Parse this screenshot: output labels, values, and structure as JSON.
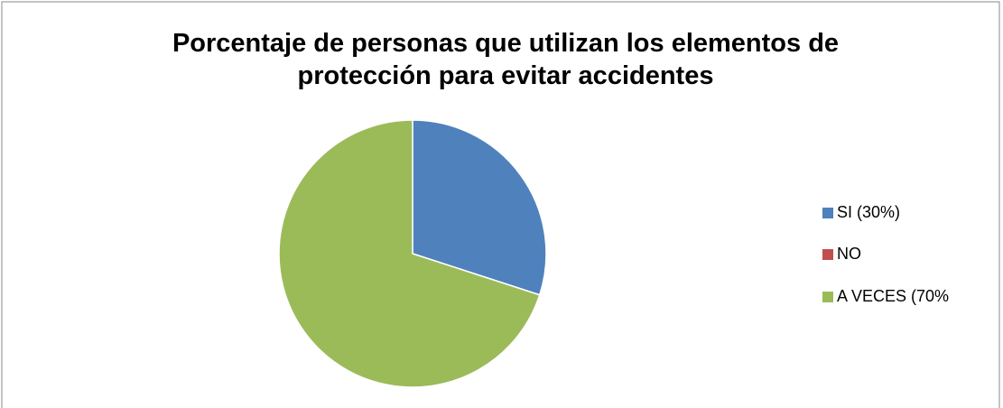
{
  "chart_data": {
    "type": "pie",
    "title": "Porcentaje de personas que utilizan los elementos de protección para evitar accidentes",
    "categories": [
      "SI (30%)",
      "NO",
      "A VECES (70%"
    ],
    "values": [
      30,
      0,
      70
    ],
    "colors": [
      "#4f81bd",
      "#c0504d",
      "#9bbb59"
    ],
    "legend": "right"
  }
}
